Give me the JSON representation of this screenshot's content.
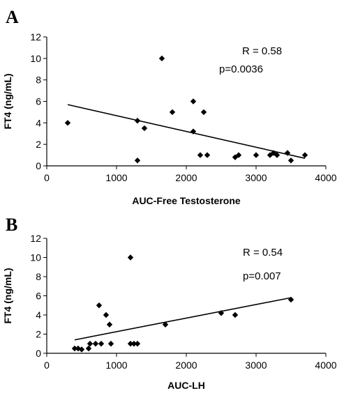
{
  "panels": [
    {
      "letter": "A"
    },
    {
      "letter": "B"
    }
  ],
  "chart_data": [
    {
      "type": "scatter",
      "panel": "A",
      "xlabel": "AUC-Free Testosterone",
      "ylabel": "FT4 (ng/mL)",
      "xlim": [
        0,
        4000
      ],
      "ylim": [
        0,
        12
      ],
      "xticks": [
        0,
        1000,
        2000,
        3000,
        4000
      ],
      "yticks": [
        0,
        2,
        4,
        6,
        8,
        10,
        12
      ],
      "grid": false,
      "marker": "diamond",
      "color": "#000000",
      "points": [
        [
          300,
          4.0
        ],
        [
          1300,
          4.2
        ],
        [
          1300,
          0.5
        ],
        [
          1400,
          3.5
        ],
        [
          1650,
          10.0
        ],
        [
          1800,
          5.0
        ],
        [
          2100,
          6.0
        ],
        [
          2100,
          3.2
        ],
        [
          2200,
          1.0
        ],
        [
          2250,
          5.0
        ],
        [
          2300,
          1.0
        ],
        [
          2700,
          0.8
        ],
        [
          2750,
          1.0
        ],
        [
          3000,
          1.0
        ],
        [
          3200,
          1.0
        ],
        [
          3250,
          1.2
        ],
        [
          3300,
          1.0
        ],
        [
          3450,
          1.2
        ],
        [
          3500,
          0.5
        ],
        [
          3700,
          1.0
        ]
      ],
      "trendline": {
        "x": [
          300,
          3700
        ],
        "y": [
          5.7,
          0.7
        ]
      },
      "annotations": [
        "R = 0.58",
        "p=0.0036"
      ]
    },
    {
      "type": "scatter",
      "panel": "B",
      "xlabel": "AUC-LH",
      "ylabel": "FT4 (ng/mL)",
      "xlim": [
        0,
        4000
      ],
      "ylim": [
        0,
        12
      ],
      "xticks": [
        0,
        1000,
        2000,
        3000,
        4000
      ],
      "yticks": [
        0,
        2,
        4,
        6,
        8,
        10,
        12
      ],
      "grid": false,
      "marker": "diamond",
      "color": "#000000",
      "points": [
        [
          400,
          0.5
        ],
        [
          450,
          0.5
        ],
        [
          500,
          0.4
        ],
        [
          600,
          0.5
        ],
        [
          620,
          1.0
        ],
        [
          700,
          1.0
        ],
        [
          750,
          5.0
        ],
        [
          780,
          1.0
        ],
        [
          850,
          4.0
        ],
        [
          900,
          3.0
        ],
        [
          920,
          1.0
        ],
        [
          1200,
          10.0
        ],
        [
          1200,
          1.0
        ],
        [
          1250,
          1.0
        ],
        [
          1300,
          1.0
        ],
        [
          1700,
          3.0
        ],
        [
          2500,
          4.2
        ],
        [
          2700,
          4.0
        ],
        [
          3500,
          5.6
        ]
      ],
      "trendline": {
        "x": [
          400,
          3500
        ],
        "y": [
          1.4,
          5.8
        ]
      },
      "annotations": [
        "R = 0.54",
        "p=0.007"
      ]
    }
  ]
}
